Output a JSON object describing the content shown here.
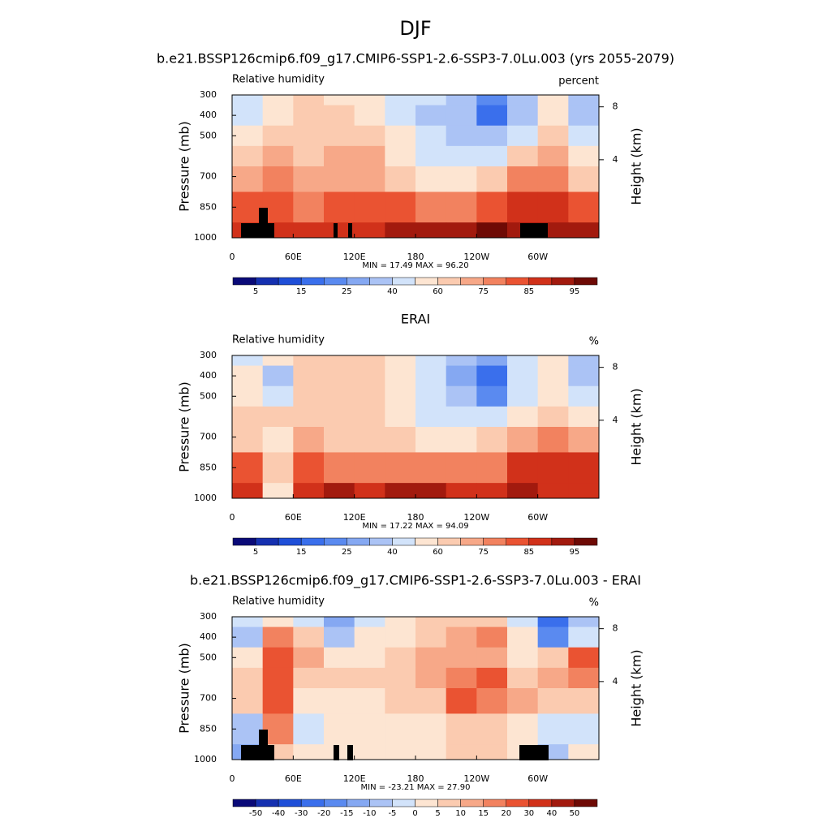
{
  "title": "DJF",
  "chart_data": [
    {
      "type": "contour",
      "title": "b.e21.BSSP126cmip6.f09_g17.CMIP6-SSP1-2.6-SSP3-7.0Lu.003 (yrs 2055-2079)",
      "left_label": "Relative humidity",
      "right_label": "percent",
      "ylabel": "Pressure (mb)",
      "y2label": "Height (km)",
      "stats": "MIN =  17.49  MAX =  96.20",
      "x": [
        15,
        45,
        75,
        105,
        135,
        165,
        195,
        225,
        255,
        285,
        315,
        345
      ],
      "y": [
        300,
        400,
        500,
        600,
        700,
        850,
        1000
      ],
      "z": [
        [
          45,
          55,
          60,
          58,
          55,
          45,
          40,
          35,
          20,
          35,
          50,
          30
        ],
        [
          48,
          58,
          62,
          60,
          55,
          45,
          38,
          30,
          18,
          35,
          55,
          35
        ],
        [
          55,
          65,
          65,
          65,
          62,
          50,
          40,
          35,
          30,
          45,
          65,
          45
        ],
        [
          65,
          72,
          68,
          70,
          70,
          55,
          45,
          40,
          45,
          60,
          72,
          55
        ],
        [
          70,
          78,
          72,
          72,
          72,
          62,
          55,
          55,
          60,
          75,
          78,
          65
        ],
        [
          82,
          80,
          78,
          82,
          82,
          80,
          75,
          78,
          82,
          88,
          85,
          80
        ],
        [
          88,
          85,
          85,
          88,
          88,
          92,
          93,
          94,
          95,
          92,
          90,
          90
        ]
      ],
      "xlim": [
        0,
        360
      ],
      "xticks": [
        0,
        {
          "value": 60,
          "label": "60E"
        },
        {
          "value": 120,
          "label": "120E"
        },
        180,
        {
          "value": 240,
          "label": "120W"
        },
        {
          "value": 300,
          "label": "60W"
        }
      ],
      "ylim": [
        1000,
        300
      ],
      "yticks": [
        300,
        400,
        500,
        700,
        850,
        1000
      ],
      "y2lim": [
        -1.9,
        8.9
      ],
      "y2ticks": [
        4,
        8
      ],
      "levels": [
        5,
        10,
        15,
        20,
        25,
        30,
        40,
        50,
        60,
        70,
        75,
        80,
        85,
        90,
        95
      ],
      "colorbar_ticks": [
        5,
        15,
        25,
        40,
        60,
        75,
        85,
        95
      ],
      "colors": [
        "#0a0a78",
        "#1530b0",
        "#1f4fd8",
        "#3a6fec",
        "#5a8af0",
        "#85a8f2",
        "#abc3f5",
        "#d2e3fa",
        "#fde5d2",
        "#fbcbb0",
        "#f7a888",
        "#f2825f",
        "#ea5332",
        "#d1311a",
        "#a21a0e",
        "#6e0a05"
      ]
    },
    {
      "type": "contour",
      "title": "ERAI",
      "left_label": "Relative humidity",
      "right_label": "%",
      "ylabel": "Pressure (mb)",
      "y2label": "Height (km)",
      "stats": "MIN =  17.22  MAX =  94.09",
      "x": [
        15,
        45,
        75,
        105,
        135,
        165,
        195,
        225,
        255,
        285,
        315,
        345
      ],
      "y": [
        300,
        400,
        500,
        600,
        700,
        850,
        1000
      ],
      "z": [
        [
          45,
          58,
          62,
          65,
          62,
          55,
          45,
          35,
          25,
          45,
          55,
          35
        ],
        [
          50,
          35,
          62,
          65,
          62,
          55,
          40,
          28,
          15,
          40,
          58,
          35
        ],
        [
          55,
          45,
          62,
          65,
          62,
          55,
          42,
          30,
          20,
          42,
          58,
          45
        ],
        [
          60,
          60,
          65,
          65,
          65,
          58,
          48,
          40,
          40,
          55,
          65,
          55
        ],
        [
          68,
          58,
          70,
          68,
          68,
          62,
          58,
          55,
          60,
          70,
          75,
          70
        ],
        [
          82,
          60,
          80,
          78,
          78,
          78,
          75,
          75,
          78,
          85,
          85,
          85
        ],
        [
          88,
          55,
          88,
          90,
          88,
          90,
          90,
          88,
          88,
          92,
          88,
          88
        ]
      ],
      "xlim": [
        0,
        360
      ],
      "xticks": [
        0,
        {
          "value": 60,
          "label": "60E"
        },
        {
          "value": 120,
          "label": "120E"
        },
        180,
        {
          "value": 240,
          "label": "120W"
        },
        {
          "value": 300,
          "label": "60W"
        }
      ],
      "ylim": [
        1000,
        300
      ],
      "yticks": [
        300,
        400,
        500,
        700,
        850,
        1000
      ],
      "y2lim": [
        -1.9,
        8.9
      ],
      "y2ticks": [
        4,
        8
      ],
      "levels": [
        5,
        10,
        15,
        20,
        25,
        30,
        40,
        50,
        60,
        70,
        75,
        80,
        85,
        90,
        95
      ],
      "colorbar_ticks": [
        5,
        15,
        25,
        40,
        60,
        75,
        85,
        95
      ],
      "colors": [
        "#0a0a78",
        "#1530b0",
        "#1f4fd8",
        "#3a6fec",
        "#5a8af0",
        "#85a8f2",
        "#abc3f5",
        "#d2e3fa",
        "#fde5d2",
        "#fbcbb0",
        "#f7a888",
        "#f2825f",
        "#ea5332",
        "#d1311a",
        "#a21a0e",
        "#6e0a05"
      ]
    },
    {
      "type": "contour",
      "title": "b.e21.BSSP126cmip6.f09_g17.CMIP6-SSP1-2.6-SSP3-7.0Lu.003 - ERAI",
      "left_label": "Relative humidity",
      "right_label": "%",
      "ylabel": "Pressure (mb)",
      "y2label": "Height (km)",
      "stats": "MIN = -23.21  MAX =  27.90",
      "x": [
        15,
        45,
        75,
        105,
        135,
        165,
        195,
        225,
        255,
        285,
        315,
        345
      ],
      "y": [
        300,
        400,
        500,
        600,
        700,
        850,
        1000
      ],
      "z": [
        [
          -5,
          0,
          -3,
          -15,
          -2,
          0,
          5,
          8,
          5,
          -2,
          -25,
          -10
        ],
        [
          -10,
          15,
          5,
          -10,
          0,
          3,
          5,
          10,
          15,
          0,
          -20,
          -5
        ],
        [
          0,
          25,
          10,
          0,
          3,
          8,
          10,
          12,
          12,
          3,
          5,
          20
        ],
        [
          5,
          25,
          5,
          5,
          5,
          8,
          12,
          18,
          20,
          8,
          10,
          15
        ],
        [
          5,
          20,
          3,
          3,
          3,
          5,
          8,
          22,
          15,
          10,
          5,
          5
        ],
        [
          -10,
          15,
          -2,
          2,
          3,
          0,
          3,
          5,
          5,
          3,
          -5,
          -3
        ],
        [
          -15,
          5,
          0,
          2,
          0,
          2,
          3,
          5,
          5,
          0,
          -10,
          0
        ]
      ],
      "xlim": [
        0,
        360
      ],
      "xticks": [
        0,
        {
          "value": 60,
          "label": "60E"
        },
        {
          "value": 120,
          "label": "120E"
        },
        180,
        {
          "value": 240,
          "label": "120W"
        },
        {
          "value": 300,
          "label": "60W"
        }
      ],
      "ylim": [
        1000,
        300
      ],
      "yticks": [
        300,
        400,
        500,
        700,
        850,
        1000
      ],
      "y2lim": [
        -1.9,
        8.9
      ],
      "y2ticks": [
        4,
        8
      ],
      "levels": [
        -50,
        -40,
        -30,
        -20,
        -15,
        -10,
        -5,
        0,
        5,
        10,
        15,
        20,
        30,
        40,
        50
      ],
      "colorbar_ticks": [
        -50,
        -40,
        -30,
        -20,
        -15,
        -10,
        -5,
        0,
        5,
        10,
        15,
        20,
        30,
        40,
        50
      ],
      "colors": [
        "#0a0a78",
        "#1530b0",
        "#1f4fd8",
        "#3a6fec",
        "#5a8af0",
        "#85a8f2",
        "#abc3f5",
        "#d2e3fa",
        "#fde5d2",
        "#fbcbb0",
        "#f7a888",
        "#f2825f",
        "#ea5332",
        "#d1311a",
        "#a21a0e",
        "#6e0a05"
      ]
    }
  ]
}
